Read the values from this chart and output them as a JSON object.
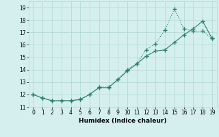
{
  "xlabel": "Humidex (Indice chaleur)",
  "background_color": "#d4efee",
  "line_color": "#2a7d6e",
  "grid_color": "#b0d8d5",
  "xlim": [
    -0.5,
    19.5
  ],
  "ylim": [
    11,
    19.5
  ],
  "xticks": [
    0,
    1,
    2,
    3,
    4,
    5,
    6,
    7,
    8,
    9,
    10,
    11,
    12,
    13,
    14,
    15,
    16,
    17,
    18,
    19
  ],
  "yticks": [
    11,
    12,
    13,
    14,
    15,
    16,
    17,
    18,
    19
  ],
  "line1_x": [
    0,
    1,
    2,
    3,
    4,
    5,
    6,
    7,
    8,
    9,
    10,
    11,
    12,
    13,
    14,
    15,
    16,
    17,
    18,
    19
  ],
  "line1_y": [
    12.0,
    11.7,
    11.5,
    11.5,
    11.5,
    11.6,
    12.0,
    12.6,
    12.6,
    13.2,
    14.0,
    14.5,
    15.6,
    16.1,
    17.2,
    18.9,
    17.3,
    17.1,
    17.1,
    16.5
  ],
  "line2_x": [
    0,
    1,
    2,
    3,
    4,
    5,
    6,
    7,
    8,
    9,
    10,
    11,
    12,
    13,
    14,
    15,
    16,
    17,
    18,
    19
  ],
  "line2_y": [
    12.0,
    11.7,
    11.5,
    11.5,
    11.5,
    11.6,
    12.0,
    12.55,
    12.55,
    13.2,
    13.9,
    14.45,
    15.1,
    15.5,
    15.6,
    16.2,
    16.8,
    17.3,
    17.9,
    16.5
  ]
}
